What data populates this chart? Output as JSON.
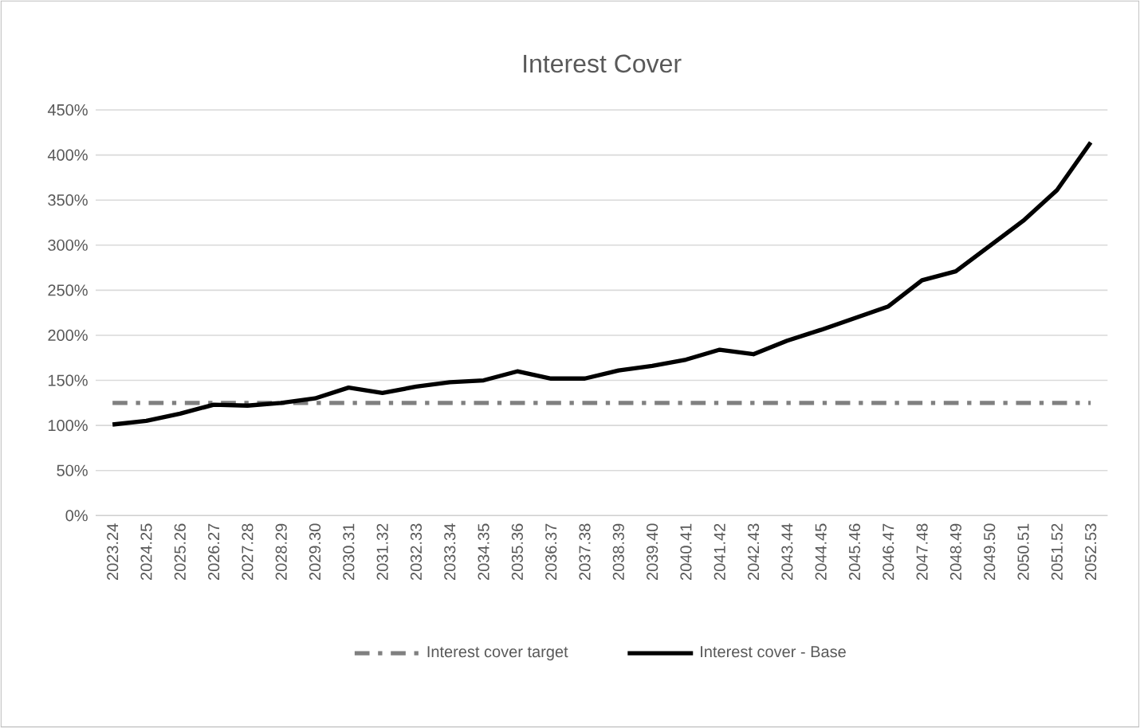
{
  "chart_data": {
    "type": "line",
    "title": "Interest Cover",
    "categories": [
      "2023.24",
      "2024.25",
      "2025.26",
      "2026.27",
      "2027.28",
      "2028.29",
      "2029.30",
      "2030.31",
      "2031.32",
      "2032.33",
      "2033.34",
      "2034.35",
      "2035.36",
      "2036.37",
      "2037.38",
      "2038.39",
      "2039.40",
      "2040.41",
      "2041.42",
      "2042.43",
      "2043.44",
      "2044.45",
      "2045.46",
      "2046.47",
      "2047.48",
      "2048.49",
      "2049.50",
      "2050.51",
      "2051.52",
      "2052.53"
    ],
    "series": [
      {
        "name": "Interest cover target",
        "color": "#808080",
        "line_style": "dashed",
        "values": [
          125,
          125,
          125,
          125,
          125,
          125,
          125,
          125,
          125,
          125,
          125,
          125,
          125,
          125,
          125,
          125,
          125,
          125,
          125,
          125,
          125,
          125,
          125,
          125,
          125,
          125,
          125,
          125,
          125,
          125
        ]
      },
      {
        "name": "Interest cover - Base",
        "color": "#000000",
        "line_style": "solid",
        "values": [
          101,
          105,
          113,
          123,
          122,
          125,
          130,
          142,
          136,
          143,
          148,
          150,
          160,
          152,
          152,
          161,
          166,
          173,
          184,
          179,
          194,
          206,
          219,
          232,
          261,
          271,
          299,
          327,
          361,
          414
        ]
      }
    ],
    "ylim": [
      0,
      450
    ],
    "yticks": [
      {
        "value": 0,
        "label": "0%"
      },
      {
        "value": 50,
        "label": "50%"
      },
      {
        "value": 100,
        "label": "100%"
      },
      {
        "value": 150,
        "label": "150%"
      },
      {
        "value": 200,
        "label": "200%"
      },
      {
        "value": 250,
        "label": "250%"
      },
      {
        "value": 300,
        "label": "300%"
      },
      {
        "value": 350,
        "label": "350%"
      },
      {
        "value": 400,
        "label": "400%"
      },
      {
        "value": 450,
        "label": "450%"
      }
    ],
    "grid": "y",
    "legend": "bottom",
    "marker": "none"
  }
}
